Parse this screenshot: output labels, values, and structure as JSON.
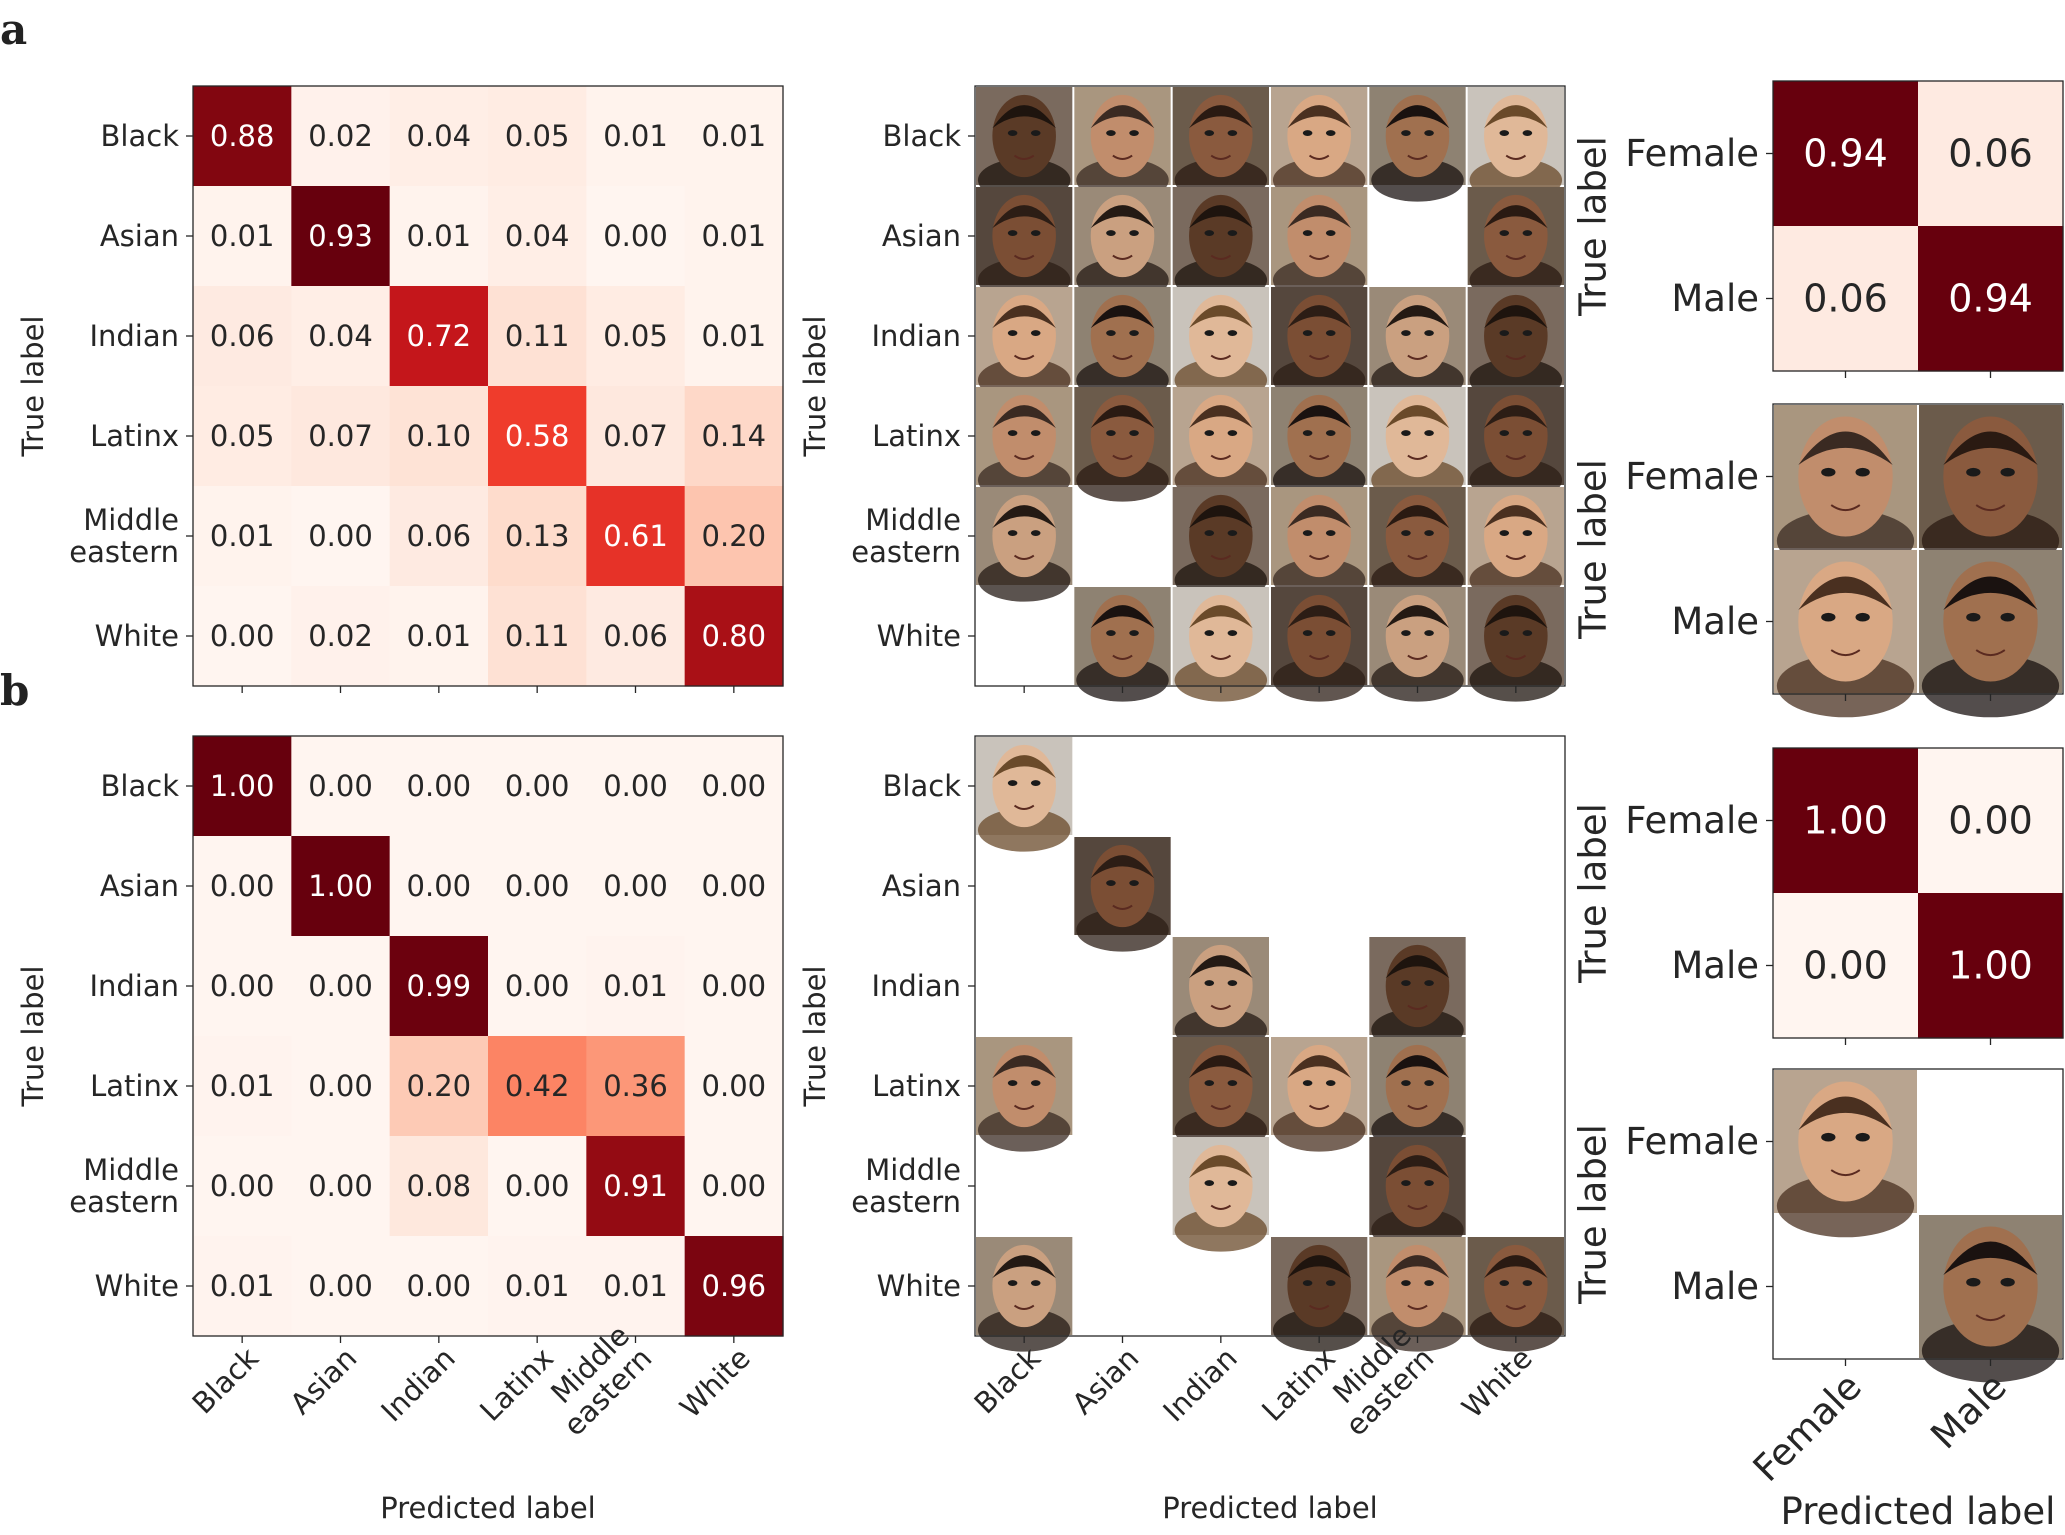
{
  "panel_labels": [
    "a",
    "b"
  ],
  "chart_data": [
    {
      "panel": "a",
      "type": "heatmap",
      "rows": [
        "Black",
        "Asian",
        "Indian",
        "Latinx",
        "Middle eastern",
        "White"
      ],
      "cols": [
        "Black",
        "Asian",
        "Indian",
        "Latinx",
        "Middle eastern",
        "White"
      ],
      "values": [
        [
          0.88,
          0.02,
          0.04,
          0.05,
          0.01,
          0.01
        ],
        [
          0.01,
          0.93,
          0.01,
          0.04,
          0.0,
          0.01
        ],
        [
          0.06,
          0.04,
          0.72,
          0.11,
          0.05,
          0.01
        ],
        [
          0.05,
          0.07,
          0.1,
          0.58,
          0.07,
          0.14
        ],
        [
          0.01,
          0.0,
          0.06,
          0.13,
          0.61,
          0.2
        ],
        [
          0.0,
          0.02,
          0.01,
          0.11,
          0.06,
          0.8
        ]
      ],
      "xlabel": "",
      "ylabel": "True label",
      "show_xticklabels": false
    },
    {
      "panel": "a",
      "type": "image-grid",
      "rows": [
        "Black",
        "Asian",
        "Indian",
        "Latinx",
        "Middle eastern",
        "White"
      ],
      "cols": [
        "Black",
        "Asian",
        "Indian",
        "Latinx",
        "Middle eastern",
        "White"
      ],
      "filled": [
        [
          1,
          1,
          1,
          1,
          1,
          1
        ],
        [
          1,
          1,
          1,
          1,
          0,
          1
        ],
        [
          1,
          1,
          1,
          1,
          1,
          1
        ],
        [
          1,
          1,
          1,
          1,
          1,
          1
        ],
        [
          1,
          0,
          1,
          1,
          1,
          1
        ],
        [
          0,
          1,
          1,
          1,
          1,
          1
        ]
      ],
      "xlabel": "",
      "ylabel": "True label",
      "show_xticklabels": false
    },
    {
      "panel": "a",
      "type": "heatmap",
      "rows": [
        "Female",
        "Male"
      ],
      "cols": [
        "Female",
        "Male"
      ],
      "values": [
        [
          0.94,
          0.06
        ],
        [
          0.06,
          0.94
        ]
      ],
      "xlabel": "",
      "ylabel": "True label",
      "show_xticklabels": false
    },
    {
      "panel": "a",
      "type": "image-grid",
      "rows": [
        "Female",
        "Male"
      ],
      "cols": [
        "Female",
        "Male"
      ],
      "filled": [
        [
          1,
          1
        ],
        [
          1,
          1
        ]
      ],
      "xlabel": "",
      "ylabel": "True label",
      "show_xticklabels": false
    },
    {
      "panel": "b",
      "type": "heatmap",
      "rows": [
        "Black",
        "Asian",
        "Indian",
        "Latinx",
        "Middle eastern",
        "White"
      ],
      "cols": [
        "Black",
        "Asian",
        "Indian",
        "Latinx",
        "Middle eastern",
        "White"
      ],
      "values": [
        [
          1.0,
          0.0,
          0.0,
          0.0,
          0.0,
          0.0
        ],
        [
          0.0,
          1.0,
          0.0,
          0.0,
          0.0,
          0.0
        ],
        [
          0.0,
          0.0,
          0.99,
          0.0,
          0.01,
          0.0
        ],
        [
          0.01,
          0.0,
          0.2,
          0.42,
          0.36,
          0.0
        ],
        [
          0.0,
          0.0,
          0.08,
          0.0,
          0.91,
          0.0
        ],
        [
          0.01,
          0.0,
          0.0,
          0.01,
          0.01,
          0.96
        ]
      ],
      "xlabel": "Predicted label",
      "ylabel": "True label",
      "show_xticklabels": true
    },
    {
      "panel": "b",
      "type": "image-grid",
      "rows": [
        "Black",
        "Asian",
        "Indian",
        "Latinx",
        "Middle eastern",
        "White"
      ],
      "cols": [
        "Black",
        "Asian",
        "Indian",
        "Latinx",
        "Middle eastern",
        "White"
      ],
      "filled": [
        [
          1,
          0,
          0,
          0,
          0,
          0
        ],
        [
          0,
          1,
          0,
          0,
          0,
          0
        ],
        [
          0,
          0,
          1,
          0,
          1,
          0
        ],
        [
          1,
          0,
          1,
          1,
          1,
          0
        ],
        [
          0,
          0,
          1,
          0,
          1,
          0
        ],
        [
          1,
          0,
          0,
          1,
          1,
          1
        ]
      ],
      "xlabel": "Predicted label",
      "ylabel": "True label",
      "show_xticklabels": true
    },
    {
      "panel": "b",
      "type": "heatmap",
      "rows": [
        "Female",
        "Male"
      ],
      "cols": [
        "Female",
        "Male"
      ],
      "values": [
        [
          1.0,
          0.0
        ],
        [
          0.0,
          1.0
        ]
      ],
      "xlabel": "",
      "ylabel": "True label",
      "show_xticklabels": false
    },
    {
      "panel": "b",
      "type": "image-grid",
      "rows": [
        "Female",
        "Male"
      ],
      "cols": [
        "Female",
        "Male"
      ],
      "filled": [
        [
          1,
          0
        ],
        [
          0,
          1
        ]
      ],
      "xlabel": "Predicted label",
      "ylabel": "True label",
      "show_xticklabels": true
    }
  ]
}
